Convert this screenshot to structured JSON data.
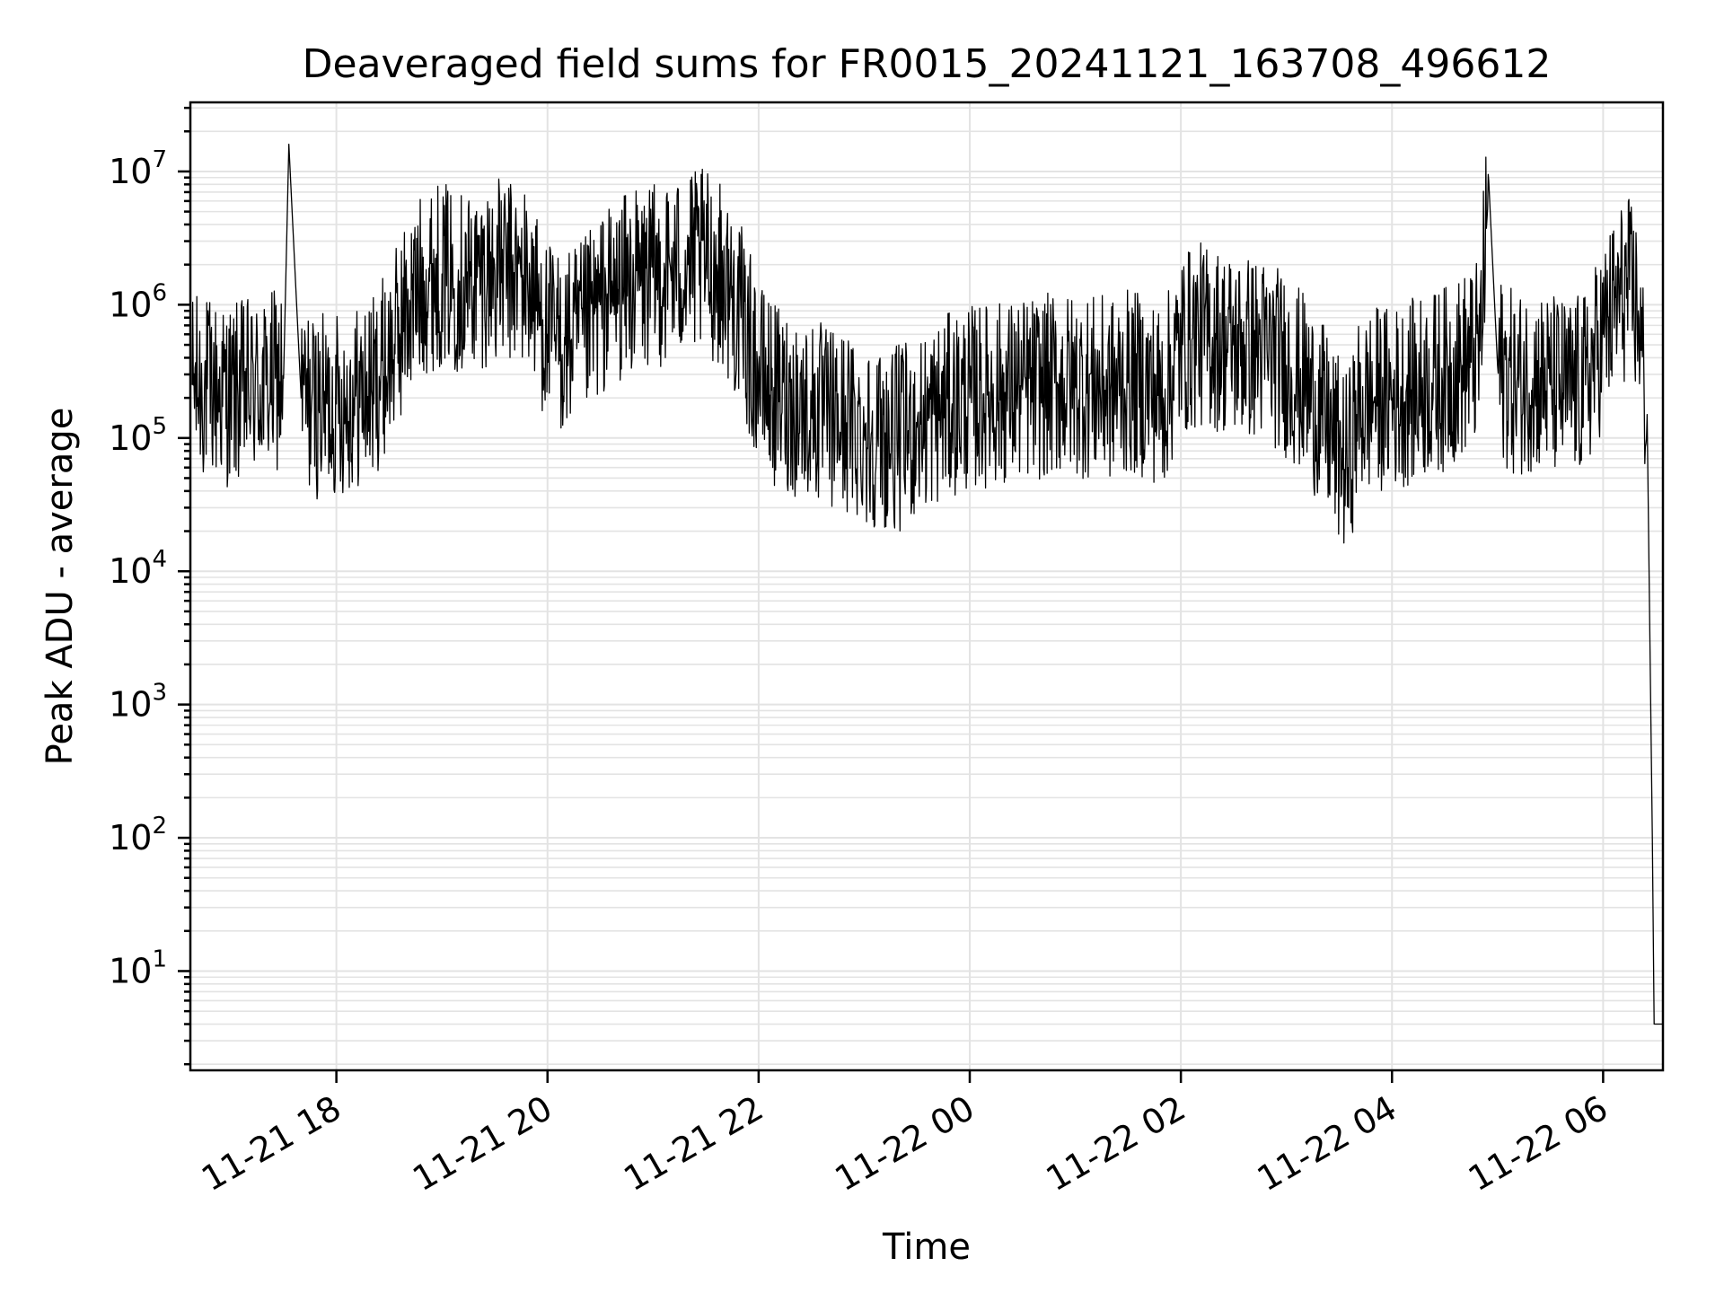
{
  "chart_data": {
    "type": "line",
    "title": "Deaveraged field sums for FR0015_20241121_163708_496612",
    "xlabel": "Time",
    "ylabel": "Peak ADU - average",
    "yscale": "log",
    "ylim": [
      1.8,
      33000000
    ],
    "xlim": [
      "2024-11-21 16:37",
      "2024-11-22 06:34"
    ],
    "grid": true,
    "x_ticks": [
      "11-21 18",
      "11-21 20",
      "11-21 22",
      "11-22 00",
      "11-22 02",
      "11-22 04",
      "11-22 06"
    ],
    "y_ticks": [
      {
        "base": "10",
        "exp": "1"
      },
      {
        "base": "10",
        "exp": "2"
      },
      {
        "base": "10",
        "exp": "3"
      },
      {
        "base": "10",
        "exp": "4"
      },
      {
        "base": "10",
        "exp": "5"
      },
      {
        "base": "10",
        "exp": "6"
      },
      {
        "base": "10",
        "exp": "7"
      }
    ],
    "series": [
      {
        "color": "#000000",
        "points": [
          [
            "2024-11-21 16:38",
            250000
          ],
          [
            "2024-11-21 16:50",
            230000
          ],
          [
            "2024-11-21 17:00",
            210000
          ],
          [
            "2024-11-21 17:10",
            230000
          ],
          [
            "2024-11-21 17:20",
            250000
          ],
          [
            "2024-11-21 17:30",
            280000
          ],
          [
            "2024-11-21 17:33",
            16000000
          ],
          [
            "2024-11-21 17:40",
            200000
          ],
          [
            "2024-11-21 17:50",
            170000
          ],
          [
            "2024-11-21 18:00",
            180000
          ],
          [
            "2024-11-21 18:10",
            200000
          ],
          [
            "2024-11-21 18:20",
            230000
          ],
          [
            "2024-11-21 18:30",
            400000
          ],
          [
            "2024-11-21 18:40",
            900000
          ],
          [
            "2024-11-21 18:50",
            1500000
          ],
          [
            "2024-11-21 19:00",
            1700000
          ],
          [
            "2024-11-21 19:10",
            1500000
          ],
          [
            "2024-11-21 19:20",
            1600000
          ],
          [
            "2024-11-21 19:30",
            1800000
          ],
          [
            "2024-11-21 19:40",
            1700000
          ],
          [
            "2024-11-21 19:50",
            1500000
          ],
          [
            "2024-11-21 20:00",
            600000
          ],
          [
            "2024-11-21 20:10",
            500000
          ],
          [
            "2024-11-21 20:20",
            600000
          ],
          [
            "2024-11-21 20:30",
            1000000
          ],
          [
            "2024-11-21 20:40",
            1300000
          ],
          [
            "2024-11-21 20:50",
            1500000
          ],
          [
            "2024-11-21 21:00",
            1600000
          ],
          [
            "2024-11-21 21:10",
            1800000
          ],
          [
            "2024-11-21 21:20",
            2000000
          ],
          [
            "2024-11-21 21:30",
            2100000
          ],
          [
            "2024-11-21 21:40",
            1600000
          ],
          [
            "2024-11-21 21:50",
            800000
          ],
          [
            "2024-11-21 22:00",
            300000
          ],
          [
            "2024-11-21 22:10",
            200000
          ],
          [
            "2024-11-21 22:20",
            180000
          ],
          [
            "2024-11-21 22:30",
            160000
          ],
          [
            "2024-11-21 22:40",
            140000
          ],
          [
            "2024-11-21 22:50",
            130000
          ],
          [
            "2024-11-21 23:00",
            110000
          ],
          [
            "2024-11-21 23:10",
            100000
          ],
          [
            "2024-11-21 23:20",
            100000
          ],
          [
            "2024-11-21 23:30",
            120000
          ],
          [
            "2024-11-21 23:40",
            150000
          ],
          [
            "2024-11-21 23:50",
            180000
          ],
          [
            "2024-11-22 00:00",
            200000
          ],
          [
            "2024-11-22 00:10",
            210000
          ],
          [
            "2024-11-22 00:20",
            220000
          ],
          [
            "2024-11-22 00:30",
            230000
          ],
          [
            "2024-11-22 00:40",
            240000
          ],
          [
            "2024-11-22 00:50",
            250000
          ],
          [
            "2024-11-22 01:00",
            250000
          ],
          [
            "2024-11-22 01:10",
            240000
          ],
          [
            "2024-11-22 01:20",
            230000
          ],
          [
            "2024-11-22 01:30",
            260000
          ],
          [
            "2024-11-22 01:40",
            250000
          ],
          [
            "2024-11-22 01:50",
            200000
          ],
          [
            "2024-11-22 02:00",
            500000
          ],
          [
            "2024-11-22 02:10",
            600000
          ],
          [
            "2024-11-22 02:20",
            550000
          ],
          [
            "2024-11-22 02:30",
            500000
          ],
          [
            "2024-11-22 02:40",
            480000
          ],
          [
            "2024-11-22 02:50",
            450000
          ],
          [
            "2024-11-22 03:00",
            350000
          ],
          [
            "2024-11-22 03:10",
            250000
          ],
          [
            "2024-11-22 03:20",
            150000
          ],
          [
            "2024-11-22 03:30",
            80000
          ],
          [
            "2024-11-22 03:35",
            60000
          ],
          [
            "2024-11-22 03:40",
            150000
          ],
          [
            "2024-11-22 03:50",
            200000
          ],
          [
            "2024-11-22 04:00",
            200000
          ],
          [
            "2024-11-22 04:10",
            220000
          ],
          [
            "2024-11-22 04:20",
            250000
          ],
          [
            "2024-11-22 04:30",
            280000
          ],
          [
            "2024-11-22 04:40",
            350000
          ],
          [
            "2024-11-22 04:50",
            450000
          ],
          [
            "2024-11-22 04:55",
            8500000
          ],
          [
            "2024-11-22 05:00",
            350000
          ],
          [
            "2024-11-22 05:10",
            250000
          ],
          [
            "2024-11-22 05:20",
            280000
          ],
          [
            "2024-11-22 05:30",
            250000
          ],
          [
            "2024-11-22 05:40",
            230000
          ],
          [
            "2024-11-22 05:50",
            250000
          ],
          [
            "2024-11-22 06:00",
            600000
          ],
          [
            "2024-11-22 06:10",
            1200000
          ],
          [
            "2024-11-22 06:15",
            1300000
          ],
          [
            "2024-11-22 06:20",
            900000
          ],
          [
            "2024-11-22 06:25",
            150000
          ],
          [
            "2024-11-22 06:28",
            100
          ],
          [
            "2024-11-22 06:29",
            4
          ],
          [
            "2024-11-22 06:34",
            4
          ]
        ]
      }
    ]
  }
}
